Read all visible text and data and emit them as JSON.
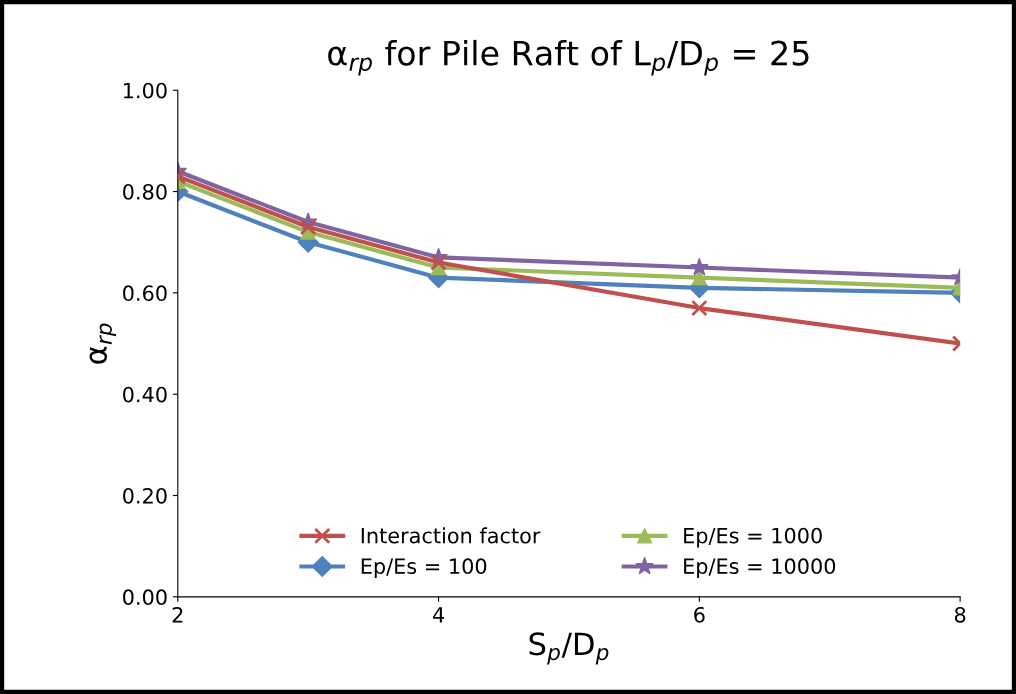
{
  "chart_data": {
    "type": "line",
    "title": "α$_{rp}$ for Pile Raft of L$_{p}$/D$_{p}$ = 25",
    "xlabel": "S$_{p}$/D$_{p}$",
    "ylabel": "α$_{rp}$",
    "x": [
      2,
      3,
      4,
      6,
      8
    ],
    "series": [
      {
        "name": "Interaction factor",
        "color": "#c0504d",
        "marker": "cross",
        "values": [
          0.83,
          0.73,
          0.66,
          0.57,
          0.5
        ]
      },
      {
        "name": "Ep/Es = 100",
        "color": "#4f81bd",
        "marker": "diamond",
        "values": [
          0.8,
          0.7,
          0.63,
          0.61,
          0.6
        ]
      },
      {
        "name": "Ep/Es = 1000",
        "color": "#9bbb59",
        "marker": "triangle",
        "values": [
          0.82,
          0.72,
          0.65,
          0.63,
          0.61
        ]
      },
      {
        "name": "Ep/Es = 10000",
        "color": "#8064a2",
        "marker": "star",
        "values": [
          0.84,
          0.74,
          0.67,
          0.65,
          0.63
        ]
      }
    ],
    "xlim": [
      2,
      8
    ],
    "xticks": [
      2,
      4,
      6,
      8
    ],
    "ylim": [
      0,
      1
    ],
    "yticks": [
      {
        "value": 0,
        "label": "0.00"
      },
      {
        "value": 0.2,
        "label": "0.20"
      },
      {
        "value": 0.4,
        "label": "0.40"
      },
      {
        "value": 0.6,
        "label": "0.60"
      },
      {
        "value": 0.8,
        "label": "0.80"
      },
      {
        "value": 1,
        "label": "1.00"
      }
    ],
    "grid": false,
    "legend": "bottom",
    "line_style": "solid"
  }
}
